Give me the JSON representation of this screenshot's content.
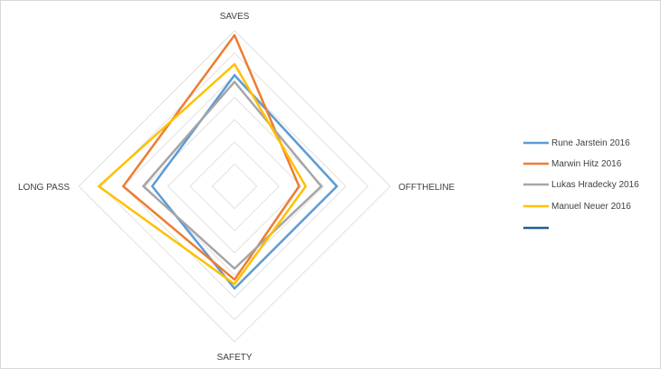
{
  "chart_data": {
    "type": "radar",
    "axes": [
      "SAVES",
      "OFFTHELINE",
      "SAFETY",
      "LONG PASS"
    ],
    "range": [
      0,
      7
    ],
    "grid": true,
    "legend_position": "right",
    "series": [
      {
        "name": "Rune Jarstein 2016",
        "color": "#5b9bd5",
        "values": [
          5.0,
          4.6,
          4.6,
          3.7
        ]
      },
      {
        "name": "Marwin Hitz 2016",
        "color": "#ed7d31",
        "values": [
          6.8,
          2.9,
          4.2,
          5.0
        ]
      },
      {
        "name": "Lukas Hradecky 2016",
        "color": "#a5a5a5",
        "values": [
          4.7,
          3.9,
          3.7,
          4.1
        ]
      },
      {
        "name": "Manuel Neuer 2016",
        "color": "#ffc000",
        "values": [
          5.5,
          3.2,
          4.4,
          6.1
        ]
      },
      {
        "name": "",
        "color": "#255e91",
        "values": []
      }
    ]
  }
}
